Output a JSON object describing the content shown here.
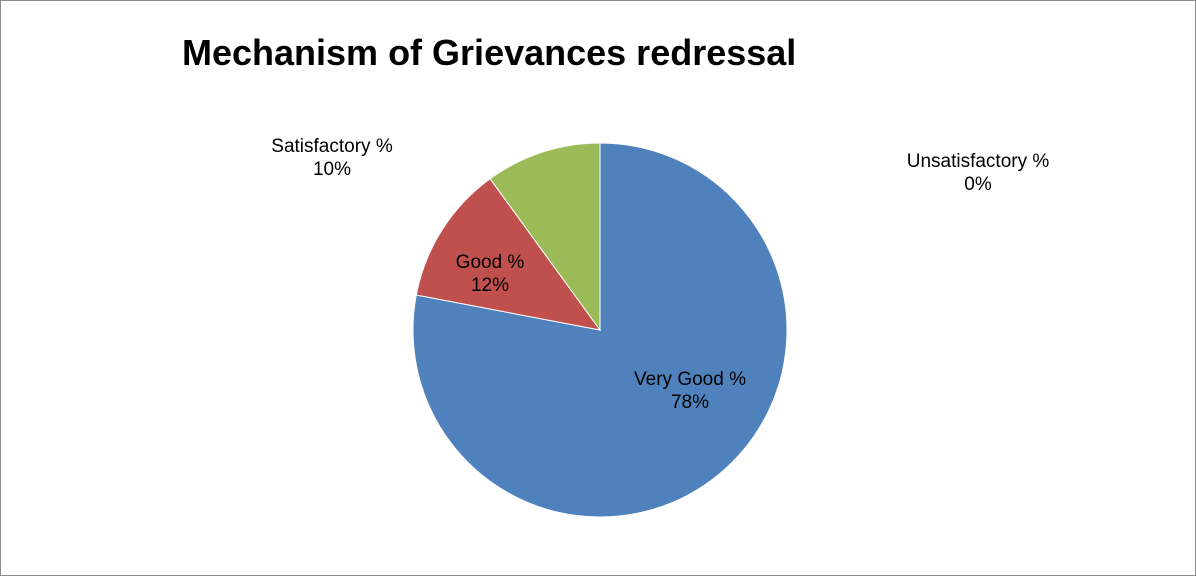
{
  "chart_data": {
    "type": "pie",
    "title": "Mechanism of Grievances redressal",
    "categories": [
      "Very Good %",
      "Good %",
      "Satisfactory %",
      "Unsatisfactory %"
    ],
    "values": [
      78,
      12,
      10,
      0
    ],
    "value_labels": [
      "78%",
      "12%",
      "10%",
      "0%"
    ],
    "colors": [
      "#4f81bd",
      "#c0504d",
      "#9bbb59",
      "#8064a2"
    ],
    "slice_border_color": "#ffffff",
    "legend": "none",
    "data_labels": "category and percentage"
  }
}
